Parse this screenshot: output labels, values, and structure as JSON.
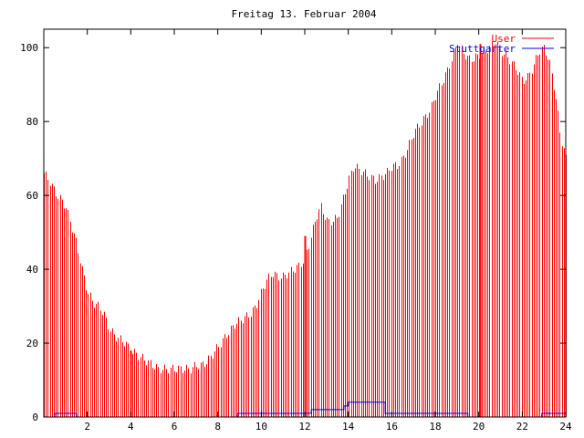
{
  "chart_data": {
    "type": "bar",
    "title": "Freitag 13. Februar 2004",
    "xlabel": "",
    "ylabel": "",
    "xlim": [
      0,
      24
    ],
    "ylim": [
      0,
      105
    ],
    "x_ticks": [
      2,
      4,
      6,
      8,
      10,
      12,
      14,
      16,
      18,
      20,
      22,
      24
    ],
    "y_ticks": [
      0,
      20,
      40,
      60,
      80,
      100
    ],
    "grid": false,
    "legend_position": "top-right",
    "series": [
      {
        "name": "User",
        "color": "#ff0000",
        "style": "impulses",
        "points": [
          [
            0.0,
            66
          ],
          [
            0.25,
            64
          ],
          [
            0.5,
            61
          ],
          [
            0.75,
            59
          ],
          [
            1.0,
            57
          ],
          [
            1.25,
            52
          ],
          [
            1.5,
            47
          ],
          [
            1.75,
            40
          ],
          [
            2.0,
            34
          ],
          [
            2.25,
            31
          ],
          [
            2.5,
            30
          ],
          [
            2.75,
            28
          ],
          [
            3.0,
            24
          ],
          [
            3.25,
            22
          ],
          [
            3.5,
            21
          ],
          [
            3.75,
            20
          ],
          [
            4.0,
            18
          ],
          [
            4.25,
            17
          ],
          [
            4.5,
            16
          ],
          [
            4.75,
            15
          ],
          [
            5.0,
            14
          ],
          [
            5.25,
            13
          ],
          [
            5.5,
            13
          ],
          [
            5.75,
            13
          ],
          [
            6.0,
            13
          ],
          [
            6.25,
            13
          ],
          [
            6.5,
            13
          ],
          [
            6.75,
            13
          ],
          [
            7.0,
            14
          ],
          [
            7.25,
            14
          ],
          [
            7.5,
            15
          ],
          [
            7.75,
            17
          ],
          [
            8.0,
            19
          ],
          [
            8.25,
            21
          ],
          [
            8.5,
            23
          ],
          [
            8.75,
            25
          ],
          [
            9.0,
            26
          ],
          [
            9.25,
            27
          ],
          [
            9.5,
            28
          ],
          [
            9.75,
            30
          ],
          [
            10.0,
            34
          ],
          [
            10.25,
            37
          ],
          [
            10.5,
            39
          ],
          [
            10.75,
            38
          ],
          [
            11.0,
            38
          ],
          [
            11.25,
            39
          ],
          [
            11.5,
            40
          ],
          [
            11.75,
            41
          ],
          [
            12.0,
            43
          ],
          [
            12.25,
            48
          ],
          [
            12.5,
            54
          ],
          [
            12.75,
            57
          ],
          [
            13.0,
            53
          ],
          [
            13.25,
            53
          ],
          [
            13.5,
            54
          ],
          [
            13.75,
            59
          ],
          [
            14.0,
            64
          ],
          [
            14.25,
            68
          ],
          [
            14.5,
            67
          ],
          [
            14.75,
            66
          ],
          [
            15.0,
            65
          ],
          [
            15.25,
            64
          ],
          [
            15.5,
            65
          ],
          [
            15.75,
            66
          ],
          [
            16.0,
            68
          ],
          [
            16.25,
            68
          ],
          [
            16.5,
            70
          ],
          [
            16.75,
            73
          ],
          [
            17.0,
            77
          ],
          [
            17.25,
            79
          ],
          [
            17.5,
            81
          ],
          [
            17.75,
            83
          ],
          [
            18.0,
            87
          ],
          [
            18.25,
            90
          ],
          [
            18.5,
            93
          ],
          [
            18.75,
            97
          ],
          [
            19.0,
            101
          ],
          [
            19.25,
            99
          ],
          [
            19.5,
            97
          ],
          [
            19.75,
            97
          ],
          [
            20.0,
            98
          ],
          [
            20.25,
            99
          ],
          [
            20.5,
            100
          ],
          [
            20.75,
            102
          ],
          [
            21.0,
            99
          ],
          [
            21.25,
            98
          ],
          [
            21.5,
            96
          ],
          [
            21.75,
            94
          ],
          [
            22.0,
            91
          ],
          [
            22.25,
            92
          ],
          [
            22.5,
            95
          ],
          [
            22.75,
            99
          ],
          [
            23.0,
            100
          ],
          [
            23.25,
            96
          ],
          [
            23.5,
            88
          ],
          [
            23.75,
            76
          ],
          [
            24.0,
            70
          ]
        ],
        "spikes": [
          [
            4.0,
            18
          ],
          [
            12.0,
            49
          ],
          [
            20.05,
            101
          ]
        ]
      },
      {
        "name": "Stuttgarter",
        "color": "#0000ff",
        "style": "steps",
        "points": [
          [
            0.0,
            0
          ],
          [
            0.5,
            1
          ],
          [
            1.5,
            0
          ],
          [
            8.9,
            1
          ],
          [
            12.3,
            2
          ],
          [
            13.8,
            3
          ],
          [
            14.0,
            4
          ],
          [
            15.7,
            1
          ],
          [
            19.5,
            0
          ],
          [
            22.9,
            1
          ],
          [
            24.0,
            1
          ]
        ]
      }
    ]
  }
}
